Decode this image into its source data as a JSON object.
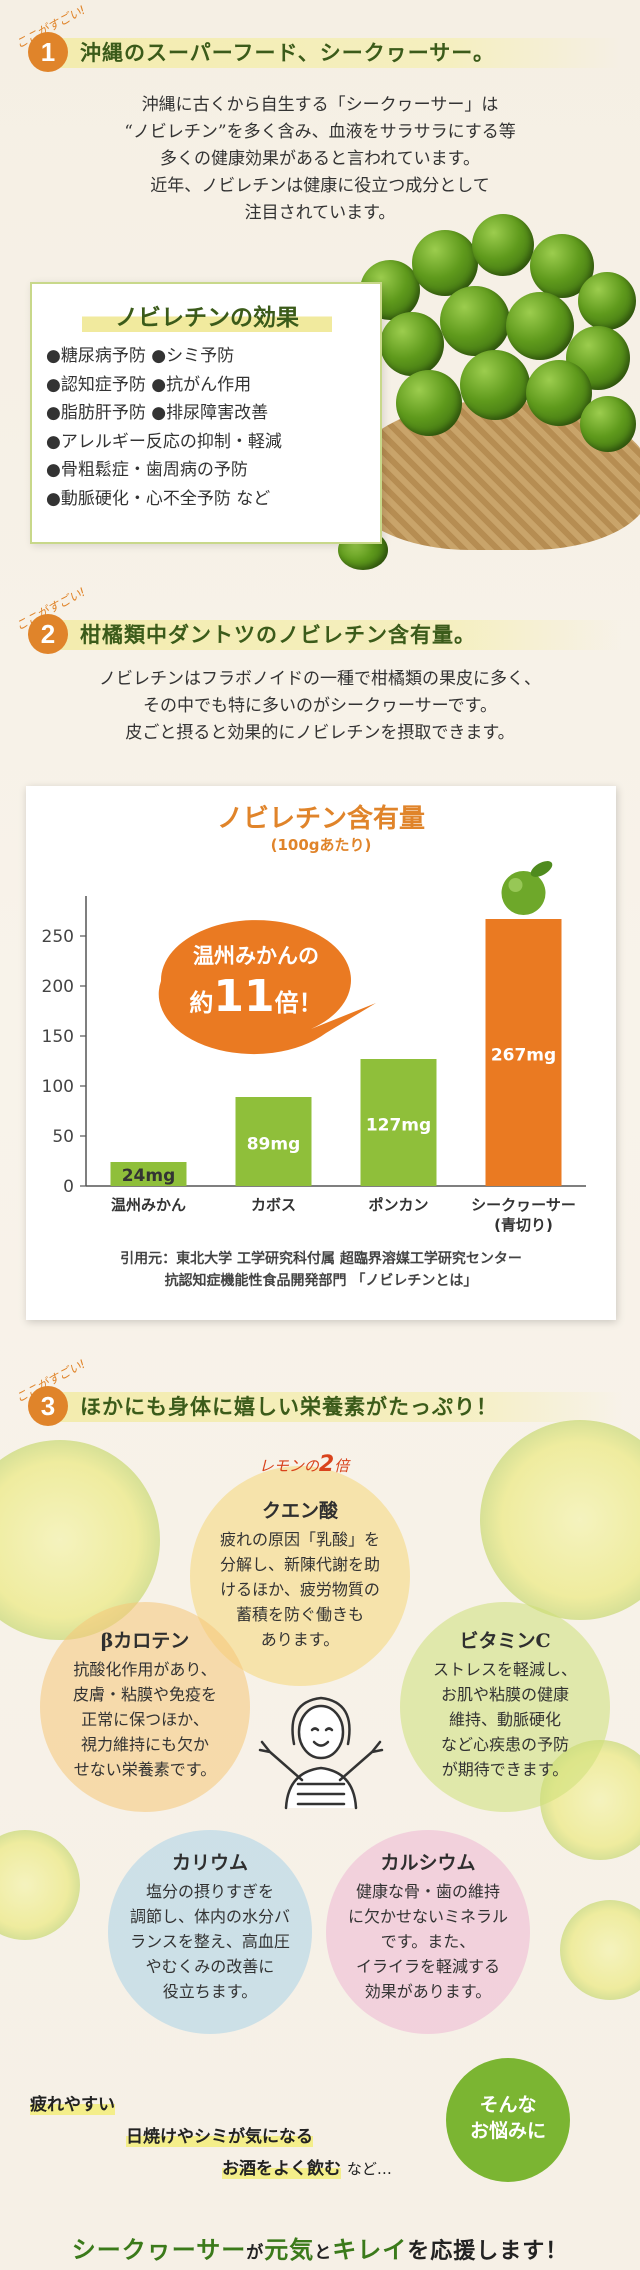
{
  "section1": {
    "tag": "ここがすごい!",
    "number": "1",
    "title": "沖縄のスーパーフード、シークヮーサー。",
    "paragraph": [
      "沖縄に古くから自生する「シークヮーサー」は",
      "“ノビレチン”を多く含み、血液をサラサラにする等",
      "多くの健康効果があると言われています。",
      "近年、ノビレチンは健康に役立つ成分として",
      "注目されています。"
    ],
    "effects_title": "ノビレチンの効果",
    "effects": [
      "●糖尿病予防 ●シミ予防",
      "●認知症予防 ●抗がん作用",
      "●脂肪肝予防 ●排尿障害改善",
      "●アレルギー反応の抑制・軽減",
      "●骨粗鬆症・歯周病の予防",
      "●動脈硬化・心不全予防 など"
    ]
  },
  "section2": {
    "tag": "ここがすごい!",
    "number": "2",
    "title": "柑橘類中ダントツのノビレチン含有量。",
    "paragraph": [
      "ノビレチンはフラボノイドの一種で柑橘類の果皮に多く、",
      "その中でも特に多いのがシークヮーサーです。",
      "皮ごと摂ると効果的にノビレチンを摂取できます。"
    ],
    "citation": [
      "引用元：東北大学 工学研究科付属 超臨界溶媒工学研究センター",
      "抗認知症機能性食品開発部門 「ノビレチンとは」"
    ]
  },
  "chart_data": {
    "type": "bar",
    "title": "ノビレチン含有量",
    "subtitle": "(100gあたり)",
    "categories": [
      "温州みかん",
      "カボス",
      "ポンカン",
      "シークヮーサー\n(青切り)"
    ],
    "values": [
      24,
      89,
      127,
      267
    ],
    "value_labels": [
      "24mg",
      "89mg",
      "127mg",
      "267mg"
    ],
    "yticks": [
      0,
      50,
      100,
      150,
      200,
      250
    ],
    "ylim": [
      0,
      280
    ],
    "colors": [
      "#8fbf3a",
      "#8fbf3a",
      "#8fbf3a",
      "#ea7a22"
    ],
    "callout_line1": "温州みかんの",
    "callout_line2_pre": "約",
    "callout_number": "11",
    "callout_line2_post": "倍！",
    "callout_color": "#ea7a22",
    "grid": false
  },
  "section3": {
    "tag": "ここがすごい!",
    "number": "3",
    "title": "ほかにも身体に嬉しい栄養素がたっぷり！",
    "lemon_badge_pre": "レモンの",
    "lemon_badge_num": "2",
    "lemon_badge_post": "倍",
    "nutrients": {
      "citric": {
        "title": "クエン酸",
        "lines": [
          "疲れの原因「乳酸」を",
          "分解し、新陳代謝を助",
          "けるほか、疲労物質の",
          "蓄積を防ぐ働きも",
          "あります。"
        ]
      },
      "carotene": {
        "title": "βカロテン",
        "lines": [
          "抗酸化作用があり、",
          "皮膚・粘膜や免疫を",
          "正常に保つほか、",
          "視力維持にも欠か",
          "せない栄養素です。"
        ]
      },
      "vitaminc": {
        "title": "ビタミンC",
        "lines": [
          "ストレスを軽減し、",
          "お肌や粘膜の健康",
          "維持、動脈硬化",
          "など心疾患の予防",
          "が期待できます。"
        ]
      },
      "potassium": {
        "title": "カリウム",
        "lines": [
          "塩分の摂りすぎを",
          "調節し、体内の水分バ",
          "ランスを整え、高血圧",
          "やむくみの改善に",
          "役立ちます。"
        ]
      },
      "calcium": {
        "title": "カルシウム",
        "lines": [
          "健康な骨・歯の維持",
          "に欠かせないミネラル",
          "です。また、",
          "イライラを軽減する",
          "効果があります。"
        ]
      }
    },
    "worries": [
      "疲れやすい",
      "日焼けやシミが気になる",
      "お酒をよく飲む"
    ],
    "worries_suffix": "など…",
    "nayami_line1": "そんな",
    "nayami_line2": "お悩みに",
    "closing_1": "シークヮーサー",
    "closing_2": "が",
    "closing_3": "元気",
    "closing_4": "と",
    "closing_5": "キレイ",
    "closing_6": "を応援します！"
  },
  "colors": {
    "accent": "#e0842a",
    "green": "#3b5b1a",
    "band": "#f3ecae"
  }
}
